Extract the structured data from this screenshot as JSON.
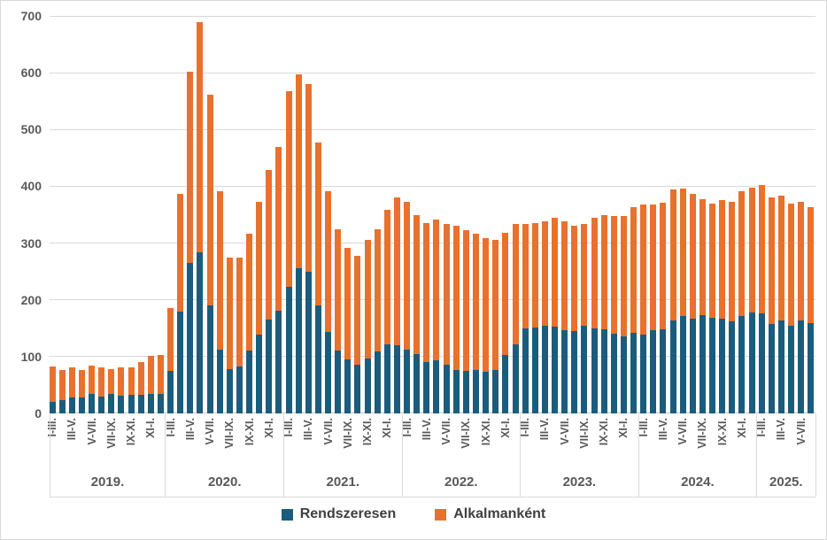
{
  "chart_data": {
    "type": "bar",
    "stacked": true,
    "title": "",
    "xlabel": "",
    "ylabel": "",
    "ylim": [
      0,
      700
    ],
    "yticks": [
      0,
      100,
      200,
      300,
      400,
      500,
      600,
      700
    ],
    "grid": true,
    "legend_position": "bottom",
    "legend": [
      "Rendszeresen",
      "Alkalmanként"
    ],
    "colors": {
      "rendszeresen": "#1b5c7d",
      "alkalmankent": "#e8712e"
    },
    "period_labels": [
      "I-III.",
      "III-V.",
      "V-VII.",
      "VII-IX.",
      "IX-XI.",
      "XI-I."
    ],
    "note": "12 overlapping two-month-step periods per year; every second bar is labelled",
    "groups": [
      {
        "year": "2019.",
        "rendszeresen": [
          20,
          23,
          28,
          28,
          34,
          30,
          34,
          31,
          32,
          33,
          34,
          34
        ],
        "alkalmankent": [
          63,
          54,
          53,
          48,
          50,
          51,
          44,
          50,
          49,
          58,
          68,
          69
        ]
      },
      {
        "year": "2020.",
        "rendszeresen": [
          75,
          180,
          265,
          283,
          190,
          112,
          78,
          83,
          111,
          138,
          166,
          181
        ],
        "alkalmankent": [
          110,
          206,
          337,
          406,
          372,
          280,
          196,
          191,
          205,
          234,
          262,
          288
        ]
      },
      {
        "year": "2021.",
        "rendszeresen": [
          223,
          256,
          249,
          191,
          144,
          111,
          95,
          85,
          97,
          109,
          121,
          120
        ],
        "alkalmankent": [
          345,
          341,
          331,
          286,
          247,
          214,
          196,
          192,
          209,
          216,
          238,
          260
        ]
      },
      {
        "year": "2022.",
        "rendszeresen": [
          112,
          104,
          90,
          93,
          86,
          76,
          75,
          76,
          74,
          76,
          103,
          121
        ],
        "alkalmankent": [
          260,
          246,
          246,
          249,
          248,
          254,
          248,
          240,
          234,
          230,
          215,
          212
        ]
      },
      {
        "year": "2023.",
        "rendszeresen": [
          149,
          151,
          155,
          153,
          146,
          145,
          154,
          150,
          148,
          140,
          135,
          142
        ],
        "alkalmankent": [
          184,
          185,
          184,
          191,
          192,
          186,
          179,
          195,
          201,
          207,
          213,
          222
        ]
      },
      {
        "year": "2024.",
        "rendszeresen": [
          138,
          146,
          148,
          163,
          172,
          167,
          173,
          169,
          167,
          162,
          171,
          177
        ],
        "alkalmankent": [
          230,
          222,
          223,
          232,
          224,
          220,
          204,
          201,
          209,
          210,
          220,
          220
        ]
      },
      {
        "year": "2025.",
        "rendszeresen": [
          176,
          157,
          163,
          155,
          163,
          159
        ],
        "alkalmankent": [
          226,
          223,
          221,
          215,
          209,
          204
        ]
      }
    ]
  }
}
